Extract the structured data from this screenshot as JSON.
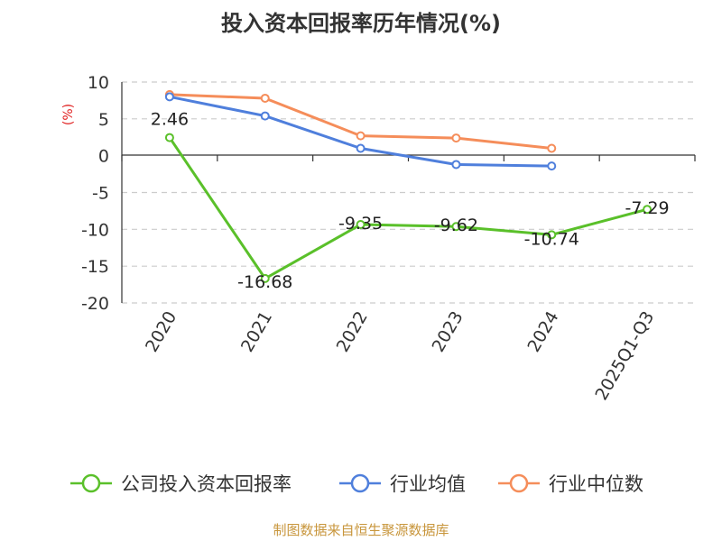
{
  "title": "投入资本回报率历年情况(%)",
  "source": "制图数据来自恒生聚源数据库",
  "chart_data": {
    "type": "line",
    "title": "投入资本回报率历年情况(%)",
    "ylabel": "(%)",
    "xlabel": "",
    "categories": [
      "2020",
      "2021",
      "2022",
      "2023",
      "2024",
      "2025Q1-Q3"
    ],
    "ylim": [
      -20,
      10
    ],
    "yticks": [
      10,
      5,
      0,
      -5,
      -10,
      -15,
      -20
    ],
    "grid": true,
    "legend_position": "bottom",
    "series": [
      {
        "name": "公司投入资本回报率",
        "color": "#5ac02a",
        "values": [
          2.46,
          -16.68,
          -9.35,
          -9.62,
          -10.74,
          -7.29
        ],
        "labels": [
          "2.46",
          "-16.68",
          "-9.35",
          "-9.62",
          "-10.74",
          "-7.29"
        ]
      },
      {
        "name": "行业均值",
        "color": "#4f7fdc",
        "values": [
          8.0,
          5.4,
          1.0,
          -1.2,
          -1.4,
          null
        ]
      },
      {
        "name": "行业中位数",
        "color": "#f58d5a",
        "values": [
          8.3,
          7.8,
          2.7,
          2.4,
          1.0,
          null
        ]
      }
    ]
  }
}
